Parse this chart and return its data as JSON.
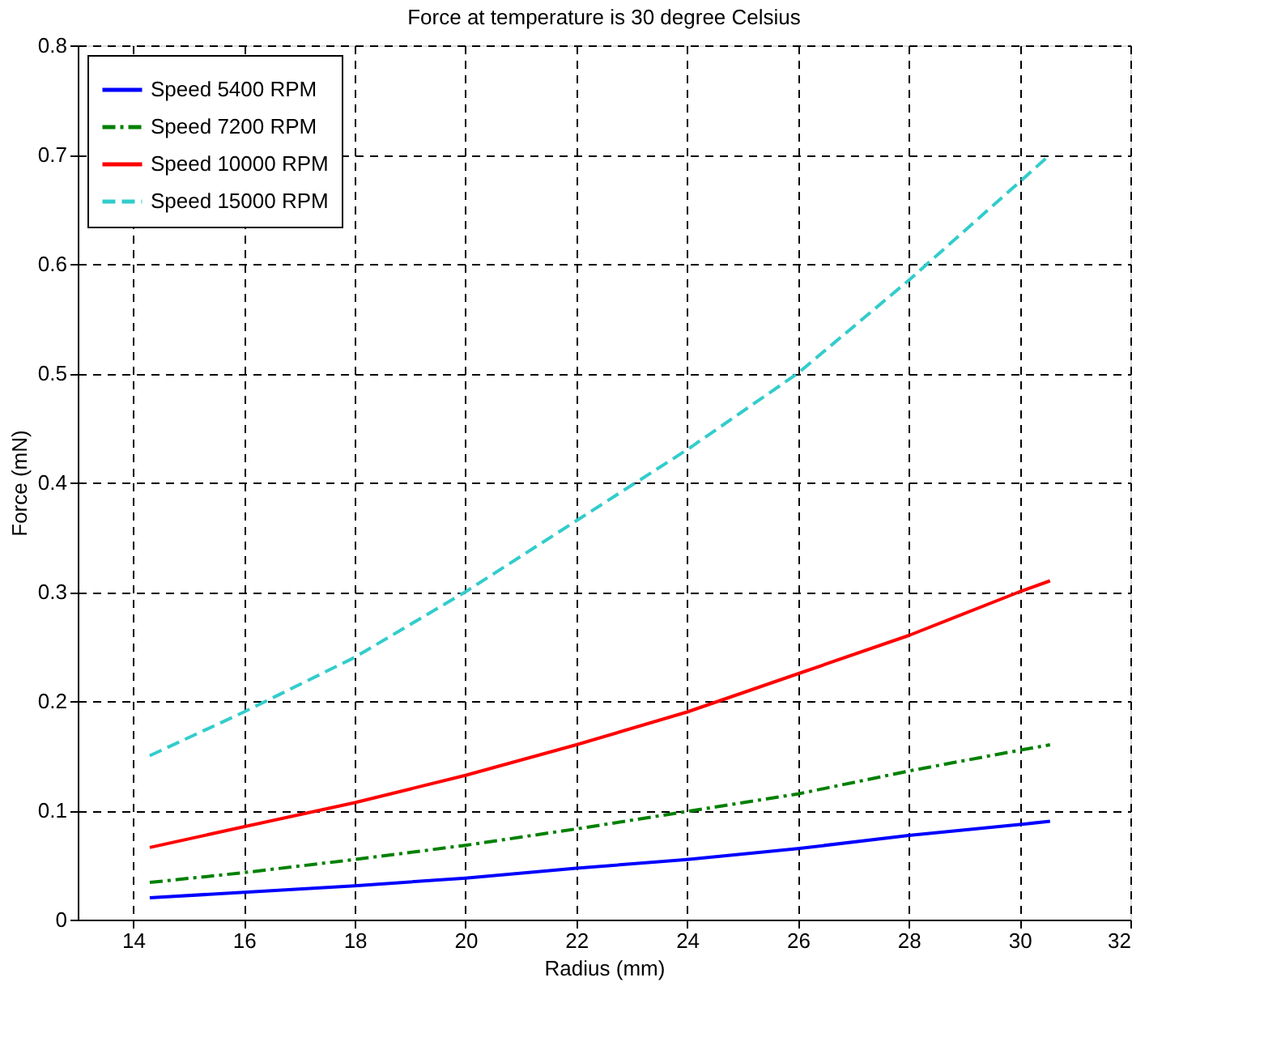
{
  "chart_data": {
    "type": "line",
    "title": "Force at temperature is 30 degree Celsius",
    "xlabel": "Radius (mm)",
    "ylabel": "Force (mN)",
    "x": [
      14.3,
      16,
      18,
      20,
      22,
      24,
      26,
      28,
      30,
      30.55
    ],
    "series": [
      {
        "name": "Speed 5400 RPM",
        "color": "#0000ff",
        "line_style": "solid",
        "values": [
          0.02,
          0.025,
          0.031,
          0.038,
          0.047,
          0.055,
          0.065,
          0.077,
          0.087,
          0.09
        ]
      },
      {
        "name": "Speed 7200 RPM",
        "color": "#008000",
        "line_style": "dashdot",
        "values": [
          0.034,
          0.043,
          0.055,
          0.068,
          0.083,
          0.099,
          0.115,
          0.136,
          0.155,
          0.16
        ]
      },
      {
        "name": "Speed 10000 RPM",
        "color": "#ff0000",
        "line_style": "solid",
        "values": [
          0.066,
          0.085,
          0.107,
          0.132,
          0.16,
          0.19,
          0.225,
          0.26,
          0.3,
          0.31
        ]
      },
      {
        "name": "Speed 15000 RPM",
        "color": "#33cccc",
        "line_style": "dashed",
        "values": [
          0.15,
          0.19,
          0.24,
          0.3,
          0.365,
          0.43,
          0.5,
          0.585,
          0.675,
          0.7
        ]
      }
    ],
    "xlim": [
      13,
      32
    ],
    "xticks": [
      14,
      16,
      18,
      20,
      22,
      24,
      26,
      28,
      30,
      32
    ],
    "ylim": [
      0,
      0.8
    ],
    "yticks": [
      0,
      0.1,
      0.2,
      0.3,
      0.4,
      0.5,
      0.6,
      0.7,
      0.8
    ],
    "grid": true,
    "legend": "top left",
    "marker": "none"
  }
}
